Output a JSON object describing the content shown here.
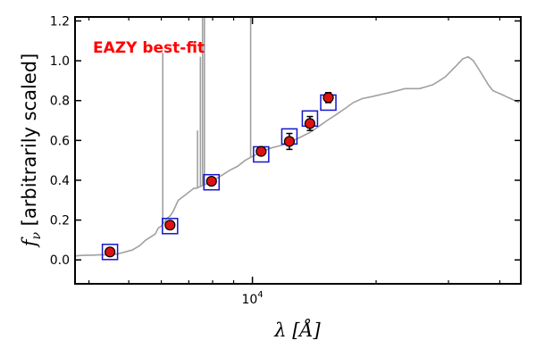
{
  "chart_data": {
    "type": "scatter",
    "title": "",
    "annotation": {
      "text": "EAZY best-fit",
      "color": "#ff0000"
    },
    "xlabel": "λ [Å]",
    "ylabel_var": "f",
    "ylabel_sub": "ν",
    "ylabel_rest": " [arbitrarily scaled]",
    "xscale": "log",
    "xlim": [
      3700,
      45000
    ],
    "ylim": [
      -0.12,
      1.22
    ],
    "x_tick_labels": [
      {
        "value": 10000,
        "base": "10",
        "exp": "4"
      }
    ],
    "x_minor_ticks": [
      4000,
      5000,
      6000,
      7000,
      8000,
      9000,
      20000,
      30000,
      40000
    ],
    "y_ticks": [
      0.0,
      0.2,
      0.4,
      0.6,
      0.8,
      1.0,
      1.2
    ],
    "y_tick_labels": [
      "0.0",
      "0.2",
      "0.4",
      "0.6",
      "0.8",
      "1.0",
      "1.2"
    ],
    "grid": false,
    "colors": {
      "template": "#a0a0a0",
      "model_box": "#1515cc",
      "observed_fill": "#dd1111",
      "observed_edge": "#000000",
      "axes": "#000000"
    },
    "series": [
      {
        "kind": "template",
        "x": [
          3700,
          3800,
          3900,
          4000,
          4100,
          4200,
          4300,
          4400,
          4500,
          4600,
          4700,
          4800,
          4900,
          5000,
          5100,
          5200,
          5300,
          5400,
          5500,
          5600,
          5700,
          5800,
          5900,
          6000,
          6100,
          6200,
          6300,
          6400,
          6500,
          6600,
          6700,
          6800,
          6900,
          7000,
          7100,
          7200,
          7300,
          7500,
          7700,
          7900,
          8200,
          8500,
          8800,
          9200,
          9600,
          10000,
          10500,
          11000,
          11500,
          12000,
          12600,
          13200,
          13800,
          14500,
          15200,
          16000,
          16800,
          17600,
          18500,
          19500,
          20500,
          21500,
          22500,
          23500,
          24500,
          25500,
          26500,
          27500,
          28500,
          29500,
          30500,
          31500,
          32500,
          33500,
          34500,
          35500,
          36500,
          37500,
          38500,
          39500,
          40500,
          41500,
          42500,
          43500,
          44500
        ],
        "y": [
          0.02,
          0.022,
          0.023,
          0.024,
          0.024,
          0.025,
          0.026,
          0.025,
          0.026,
          0.027,
          0.03,
          0.035,
          0.04,
          0.045,
          0.05,
          0.06,
          0.07,
          0.085,
          0.1,
          0.11,
          0.12,
          0.13,
          0.16,
          0.17,
          0.19,
          0.21,
          0.22,
          0.24,
          0.27,
          0.3,
          0.31,
          0.32,
          0.33,
          0.34,
          0.35,
          0.36,
          0.36,
          0.37,
          0.38,
          0.39,
          0.41,
          0.43,
          0.45,
          0.47,
          0.5,
          0.52,
          0.54,
          0.56,
          0.57,
          0.58,
          0.6,
          0.62,
          0.64,
          0.67,
          0.7,
          0.73,
          0.76,
          0.79,
          0.81,
          0.82,
          0.83,
          0.84,
          0.85,
          0.86,
          0.86,
          0.86,
          0.87,
          0.88,
          0.9,
          0.92,
          0.95,
          0.98,
          1.01,
          1.02,
          1.0,
          0.96,
          0.92,
          0.88,
          0.85,
          0.84,
          0.83,
          0.82,
          0.81,
          0.8,
          0.79
        ]
      },
      {
        "kind": "emission_lines",
        "lines": [
          {
            "x": 6050,
            "y": 1.04
          },
          {
            "x": 7350,
            "y": 0.65
          },
          {
            "x": 7470,
            "y": 1.02
          },
          {
            "x": 7560,
            "y": 1.22
          },
          {
            "x": 7640,
            "y": 1.22
          },
          {
            "x": 9900,
            "y": 1.22
          }
        ]
      },
      {
        "kind": "model_photometry",
        "x": [
          4500,
          6300,
          7950,
          10500,
          12300,
          13800,
          15300
        ],
        "y": [
          0.04,
          0.17,
          0.39,
          0.53,
          0.62,
          0.71,
          0.79
        ]
      },
      {
        "kind": "observed_photometry",
        "x": [
          4500,
          6300,
          7950,
          10500,
          12300,
          13800,
          15300
        ],
        "y": [
          0.04,
          0.175,
          0.395,
          0.545,
          0.595,
          0.685,
          0.815
        ],
        "yerr": [
          0.01,
          0.015,
          0.015,
          0.02,
          0.04,
          0.035,
          0.025
        ]
      }
    ]
  }
}
